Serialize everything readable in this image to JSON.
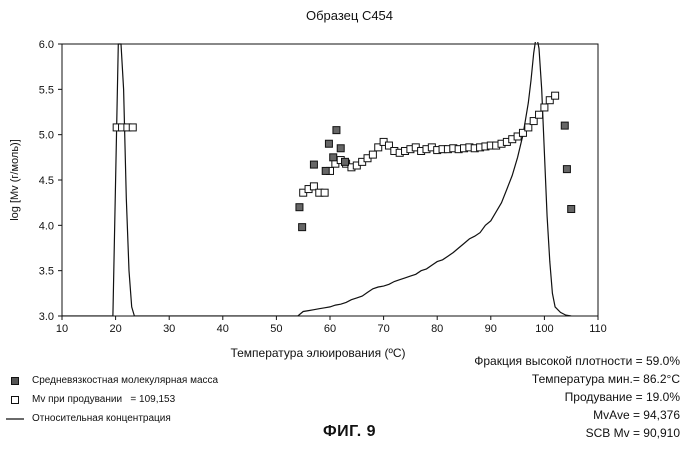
{
  "chart_data": {
    "type": "scatter",
    "title": "Образец С454",
    "xlabel": "Температура элюирования (ºC)",
    "ylabel": "log [Mv (г/моль)]",
    "xlim": [
      10,
      110
    ],
    "ylim": [
      3.0,
      6.0
    ],
    "xticks": [
      "10",
      "20",
      "30",
      "40",
      "50",
      "60",
      "70",
      "80",
      "90",
      "100",
      "110"
    ],
    "yticks": [
      "3.0",
      "3.5",
      "4.0",
      "4.5",
      "5.0",
      "5.5",
      "6.0"
    ],
    "series": [
      {
        "name": "Средневязкостная молекулярная масса",
        "type": "scatter",
        "marker": "filled-square",
        "x": [
          54.3,
          54.8,
          57.0,
          59.2,
          59.8,
          60.6,
          61.2,
          62.0,
          62.8,
          103.8,
          104.2,
          105.0
        ],
        "y": [
          4.2,
          3.98,
          4.67,
          4.6,
          4.9,
          4.75,
          5.05,
          4.85,
          4.7,
          5.1,
          4.62,
          4.18
        ]
      },
      {
        "name": "Мv при продувании",
        "type": "scatter",
        "marker": "open-square",
        "x": [
          20.2,
          21.2,
          22.2,
          23.2,
          55.0,
          56.0,
          57.0,
          58.0,
          59.0,
          60.0,
          61.0,
          62.0,
          63.0,
          64.0,
          65.0,
          66.0,
          67.0,
          68.0,
          69.0,
          70.0,
          71.0,
          72.0,
          73.0,
          74.0,
          75.0,
          76.0,
          77.0,
          78.0,
          79.0,
          80.0,
          81.0,
          82.0,
          83.0,
          84.0,
          85.0,
          86.0,
          87.0,
          88.0,
          89.0,
          90.0,
          91.0,
          92.0,
          93.0,
          94.0,
          95.0,
          96.0,
          97.0,
          98.0,
          99.0,
          100.0,
          101.0,
          102.0
        ],
        "y": [
          5.08,
          5.08,
          5.08,
          5.08,
          4.36,
          4.4,
          4.43,
          4.36,
          4.36,
          4.6,
          4.68,
          4.72,
          4.68,
          4.64,
          4.66,
          4.7,
          4.74,
          4.78,
          4.86,
          4.92,
          4.88,
          4.82,
          4.8,
          4.82,
          4.84,
          4.86,
          4.82,
          4.84,
          4.86,
          4.83,
          4.84,
          4.84,
          4.85,
          4.84,
          4.85,
          4.86,
          4.85,
          4.86,
          4.87,
          4.88,
          4.88,
          4.9,
          4.92,
          4.95,
          4.98,
          5.02,
          5.08,
          5.15,
          5.22,
          5.3,
          5.38,
          5.43
        ]
      },
      {
        "name": "Относительная концентрация",
        "type": "line",
        "x": [
          10,
          19.5,
          20.0,
          20.5,
          21.0,
          21.5,
          22.0,
          22.5,
          23.0,
          23.5,
          24.0,
          54.0,
          55,
          56,
          57,
          58,
          59,
          60,
          61,
          62,
          63,
          64,
          65,
          66,
          67,
          68,
          69,
          70,
          71,
          72,
          73,
          74,
          75,
          76,
          77,
          78,
          79,
          80,
          81,
          82,
          83,
          84,
          85,
          86,
          87,
          88,
          89,
          90,
          91,
          92,
          93,
          94,
          95,
          96,
          97,
          97.5,
          98,
          98.5,
          99,
          99.5,
          100,
          100.5,
          101,
          101.5,
          102,
          103,
          104,
          105
        ],
        "y": [
          3.0,
          3.0,
          4.5,
          6.0,
          6.0,
          5.5,
          4.3,
          3.5,
          3.1,
          3.0,
          3.0,
          3.0,
          3.05,
          3.06,
          3.07,
          3.08,
          3.09,
          3.1,
          3.12,
          3.13,
          3.15,
          3.18,
          3.2,
          3.22,
          3.26,
          3.3,
          3.32,
          3.33,
          3.35,
          3.38,
          3.4,
          3.42,
          3.44,
          3.46,
          3.5,
          3.52,
          3.56,
          3.6,
          3.62,
          3.66,
          3.7,
          3.75,
          3.8,
          3.85,
          3.88,
          3.92,
          4.0,
          4.05,
          4.15,
          4.25,
          4.4,
          4.55,
          4.75,
          5.0,
          5.35,
          5.6,
          5.9,
          6.1,
          5.95,
          5.5,
          4.8,
          4.1,
          3.6,
          3.25,
          3.1,
          3.04,
          3.01,
          3.0
        ]
      }
    ],
    "legend": [
      {
        "marker": "filled-square",
        "label": "Средневязкостная молекулярная масса"
      },
      {
        "marker": "open-square",
        "label": "Мv при продувании   = 109,153"
      },
      {
        "marker": "line",
        "label": "Относительная концентрация"
      }
    ],
    "grid": false,
    "legend_position": "bottom-left"
  },
  "stats": [
    "Фракция высокой плотности = 59.0%",
    "Температура мин.= 86.2°C",
    "Продувание = 19.0%",
    "MvAve = 94,376",
    "SCB Mv = 90,910"
  ],
  "figure_caption": "ФИГ. 9"
}
